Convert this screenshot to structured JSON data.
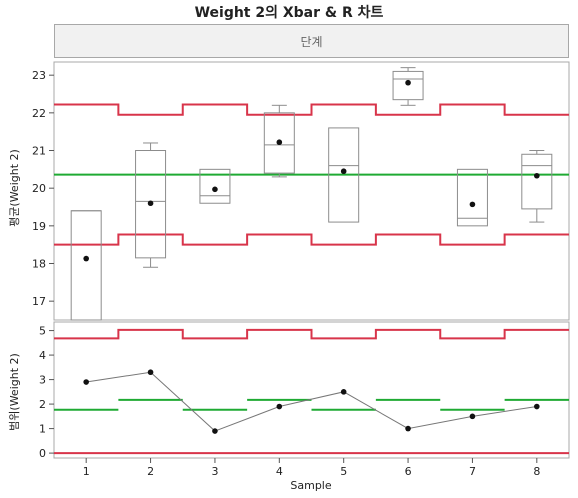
{
  "title": "Weight 2의 Xbar & R 차트",
  "phase_header": "단계",
  "colors": {
    "limit": "#d8344a",
    "center": "#1faa33",
    "box": "#8c8c8c",
    "point": "#111111",
    "line": "#777777"
  },
  "chart_data": [
    {
      "type": "box",
      "name": "xbar",
      "ylabel": "평균(Weight 2)",
      "ylim": [
        16.5,
        23.35
      ],
      "yticks": [
        17,
        18,
        19,
        20,
        21,
        22,
        23
      ],
      "categories": [
        "1",
        "2",
        "3",
        "4",
        "5",
        "6",
        "7",
        "8"
      ],
      "means": [
        18.13,
        19.6,
        19.97,
        21.22,
        20.45,
        22.8,
        19.57,
        20.33
      ],
      "boxes": [
        {
          "min": 16.5,
          "q1": 16.5,
          "median": 19.4,
          "q3": 19.4,
          "max": 19.4
        },
        {
          "min": 17.9,
          "q1": 18.15,
          "median": 19.65,
          "q3": 21.0,
          "max": 21.2
        },
        {
          "min": 19.6,
          "q1": 19.6,
          "median": 19.8,
          "q3": 20.5,
          "max": 20.5
        },
        {
          "min": 20.3,
          "q1": 20.4,
          "median": 21.15,
          "q3": 22.0,
          "max": 22.2
        },
        {
          "min": 19.1,
          "q1": 19.1,
          "median": 20.6,
          "q3": 21.6,
          "max": 21.6
        },
        {
          "min": 22.2,
          "q1": 22.35,
          "median": 22.9,
          "q3": 23.1,
          "max": 23.2
        },
        {
          "min": 19.0,
          "q1": 19.0,
          "median": 19.2,
          "q3": 20.5,
          "max": 20.5
        },
        {
          "min": 19.1,
          "q1": 19.45,
          "median": 20.6,
          "q3": 20.9,
          "max": 21.0
        }
      ],
      "center": [
        20.36,
        20.36,
        20.36,
        20.36,
        20.36,
        20.36,
        20.36,
        20.36
      ],
      "ucl": [
        22.22,
        21.95,
        22.22,
        21.95,
        22.22,
        21.95,
        22.22,
        21.95
      ],
      "lcl": [
        18.5,
        18.77,
        18.5,
        18.77,
        18.5,
        18.77,
        18.5,
        18.77
      ]
    },
    {
      "type": "line",
      "name": "range",
      "ylabel": "범위(Weight 2)",
      "xlabel": "Sample",
      "ylim": [
        -0.2,
        5.35
      ],
      "yticks": [
        0,
        1,
        2,
        3,
        4,
        5
      ],
      "categories": [
        "1",
        "2",
        "3",
        "4",
        "5",
        "6",
        "7",
        "8"
      ],
      "values": [
        2.9,
        3.3,
        0.9,
        1.9,
        2.5,
        1.0,
        1.5,
        1.9
      ],
      "center": [
        1.77,
        2.17,
        1.77,
        2.17,
        1.77,
        2.17,
        1.77,
        2.17
      ],
      "ucl": [
        4.68,
        5.03,
        4.68,
        5.03,
        4.68,
        5.03,
        4.68,
        5.03
      ],
      "lcl": [
        0,
        0,
        0,
        0,
        0,
        0,
        0,
        0
      ]
    }
  ]
}
